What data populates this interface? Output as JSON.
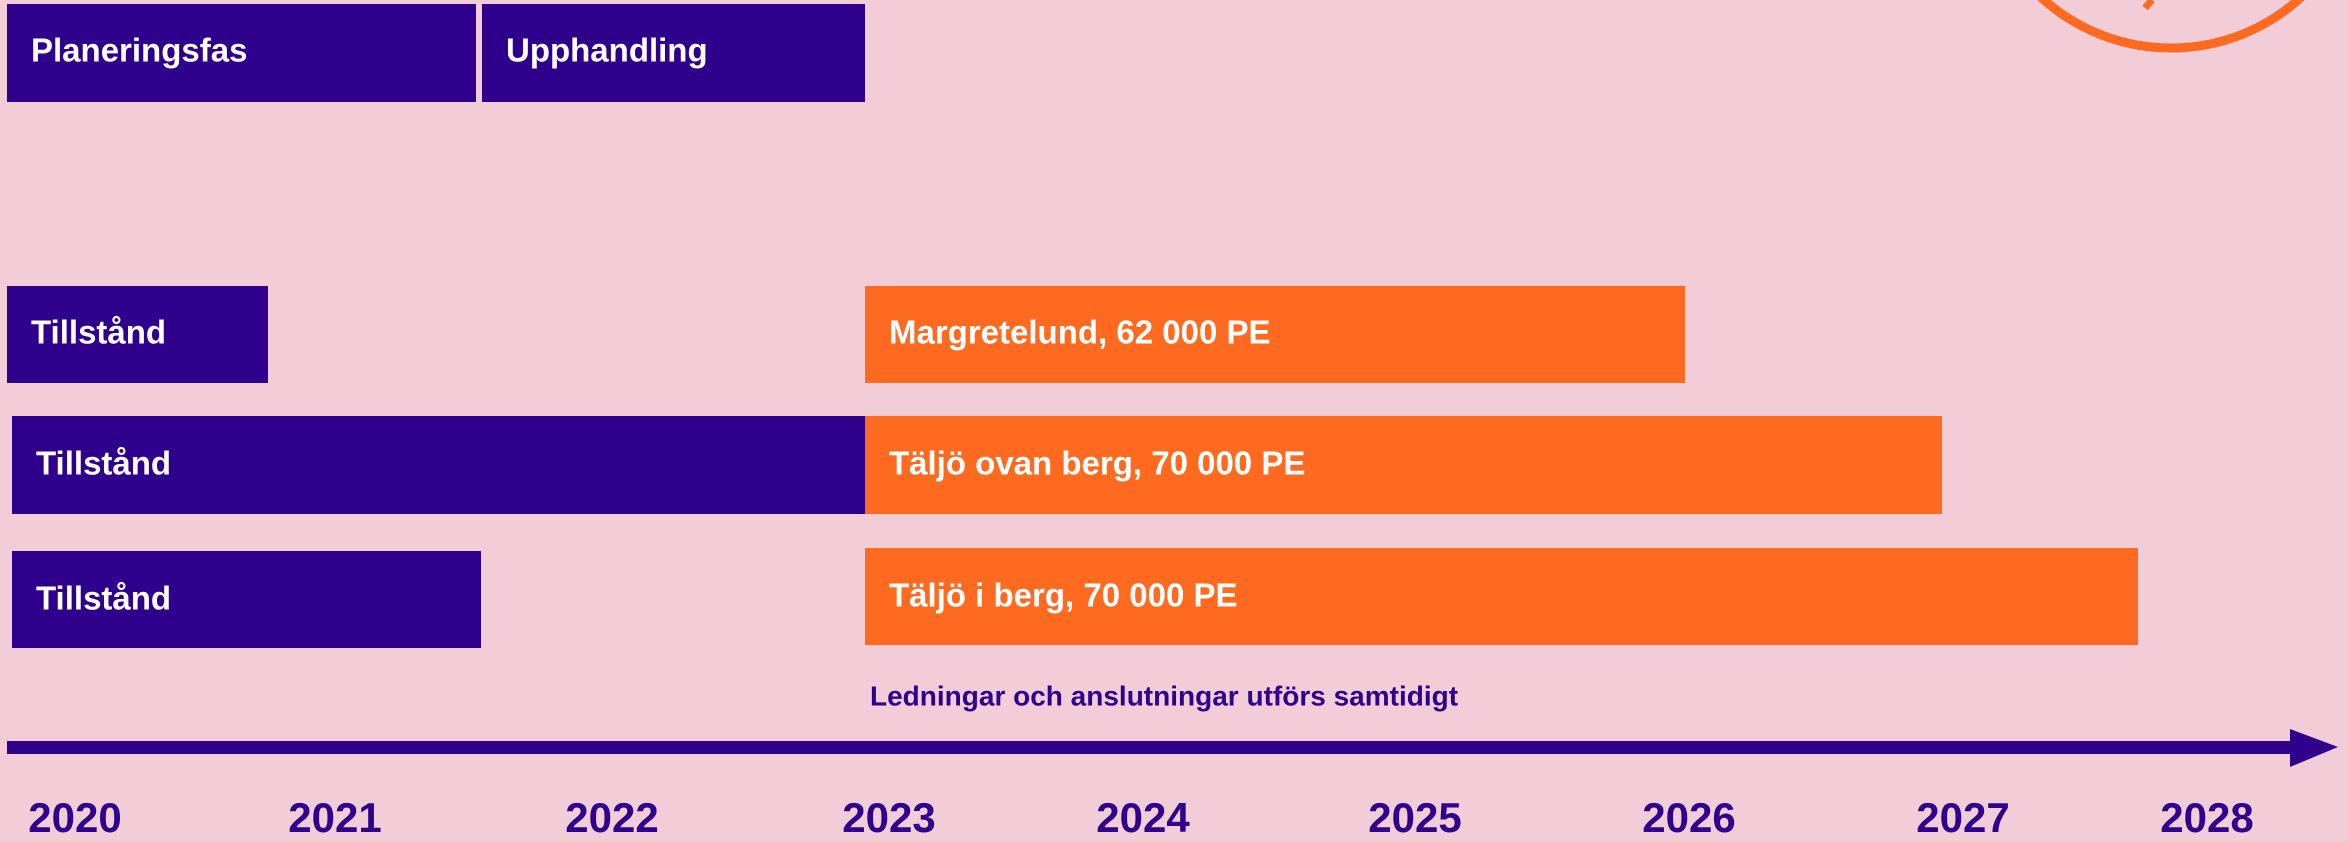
{
  "phases": [
    {
      "label": "Planeringsfas"
    },
    {
      "label": "Upphandling"
    }
  ],
  "rows": [
    {
      "permit": "Tillstånd",
      "project": "Margretelund, 62 000 PE"
    },
    {
      "permit": "Tillstånd",
      "project": "Täljö ovan berg, 70 000 PE"
    },
    {
      "permit": "Tillstånd",
      "project": "Täljö i berg, 70 000 PE"
    }
  ],
  "note": "Ledningar och anslutningar utförs samtidigt",
  "years": [
    "2020",
    "2021",
    "2022",
    "2023",
    "2024",
    "2025",
    "2026",
    "2027",
    "2028"
  ]
}
